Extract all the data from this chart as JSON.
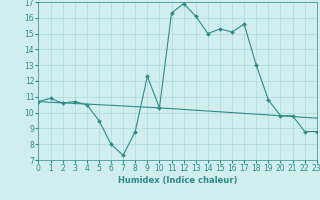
{
  "x": [
    0,
    1,
    2,
    3,
    4,
    5,
    6,
    7,
    8,
    9,
    10,
    11,
    12,
    13,
    14,
    15,
    16,
    17,
    18,
    19,
    20,
    21,
    22,
    23
  ],
  "y_line1": [
    10.7,
    10.9,
    10.6,
    10.7,
    10.5,
    9.5,
    8.0,
    7.3,
    8.8,
    12.3,
    10.3,
    16.3,
    16.9,
    16.1,
    15.0,
    15.3,
    15.1,
    15.6,
    13.0,
    10.8,
    9.8,
    9.8,
    8.8,
    8.8
  ],
  "y_line2": [
    10.7,
    10.65,
    10.62,
    10.58,
    10.54,
    10.5,
    10.46,
    10.42,
    10.38,
    10.34,
    10.3,
    10.25,
    10.2,
    10.15,
    10.1,
    10.05,
    10.0,
    9.95,
    9.9,
    9.85,
    9.8,
    9.75,
    9.7,
    9.65
  ],
  "line_color": "#2e8b8b",
  "bg_color": "#d0eeee",
  "grid_color": "#b0d8d8",
  "xlabel": "Humidex (Indice chaleur)",
  "ylim": [
    7,
    17
  ],
  "xlim": [
    0,
    23
  ],
  "yticks": [
    7,
    8,
    9,
    10,
    11,
    12,
    13,
    14,
    15,
    16,
    17
  ],
  "xticks": [
    0,
    1,
    2,
    3,
    4,
    5,
    6,
    7,
    8,
    9,
    10,
    11,
    12,
    13,
    14,
    15,
    16,
    17,
    18,
    19,
    20,
    21,
    22,
    23
  ],
  "markersize": 2.0,
  "linewidth": 0.8,
  "tick_fontsize": 5.5,
  "xlabel_fontsize": 6.0
}
